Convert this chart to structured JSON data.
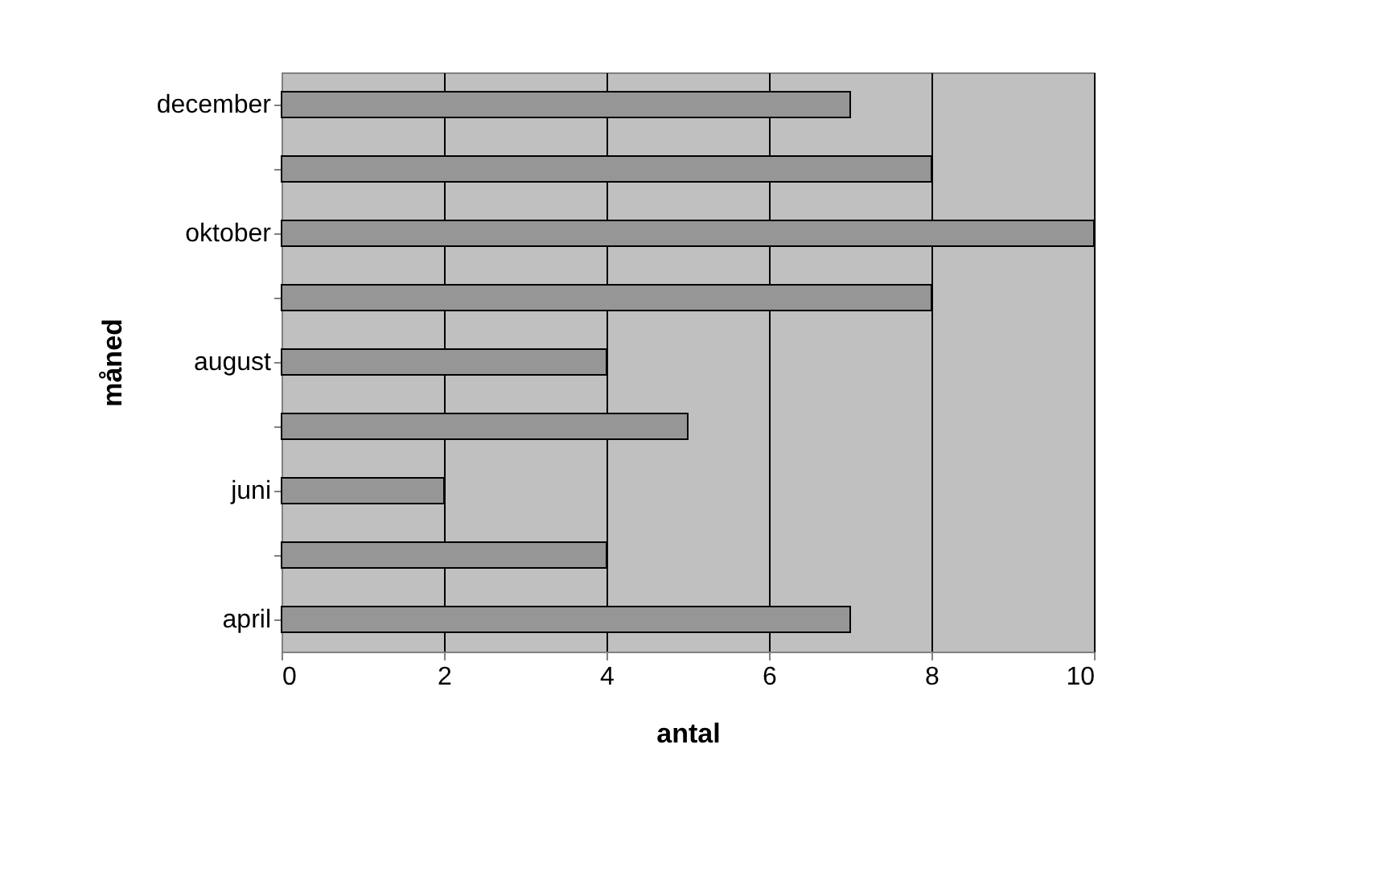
{
  "chart_data": {
    "type": "bar",
    "orientation": "horizontal",
    "xlabel": "antal",
    "ylabel": "måned",
    "categories": [
      "december",
      null,
      "oktober",
      null,
      "august",
      null,
      "juni",
      null,
      "april"
    ],
    "values": [
      7,
      8,
      10,
      8,
      4,
      5,
      2,
      4,
      7
    ],
    "color": "#969696",
    "xlim": [
      0,
      10
    ],
    "xticks": [
      0,
      2,
      4,
      6,
      8,
      10
    ],
    "grid": "x"
  }
}
